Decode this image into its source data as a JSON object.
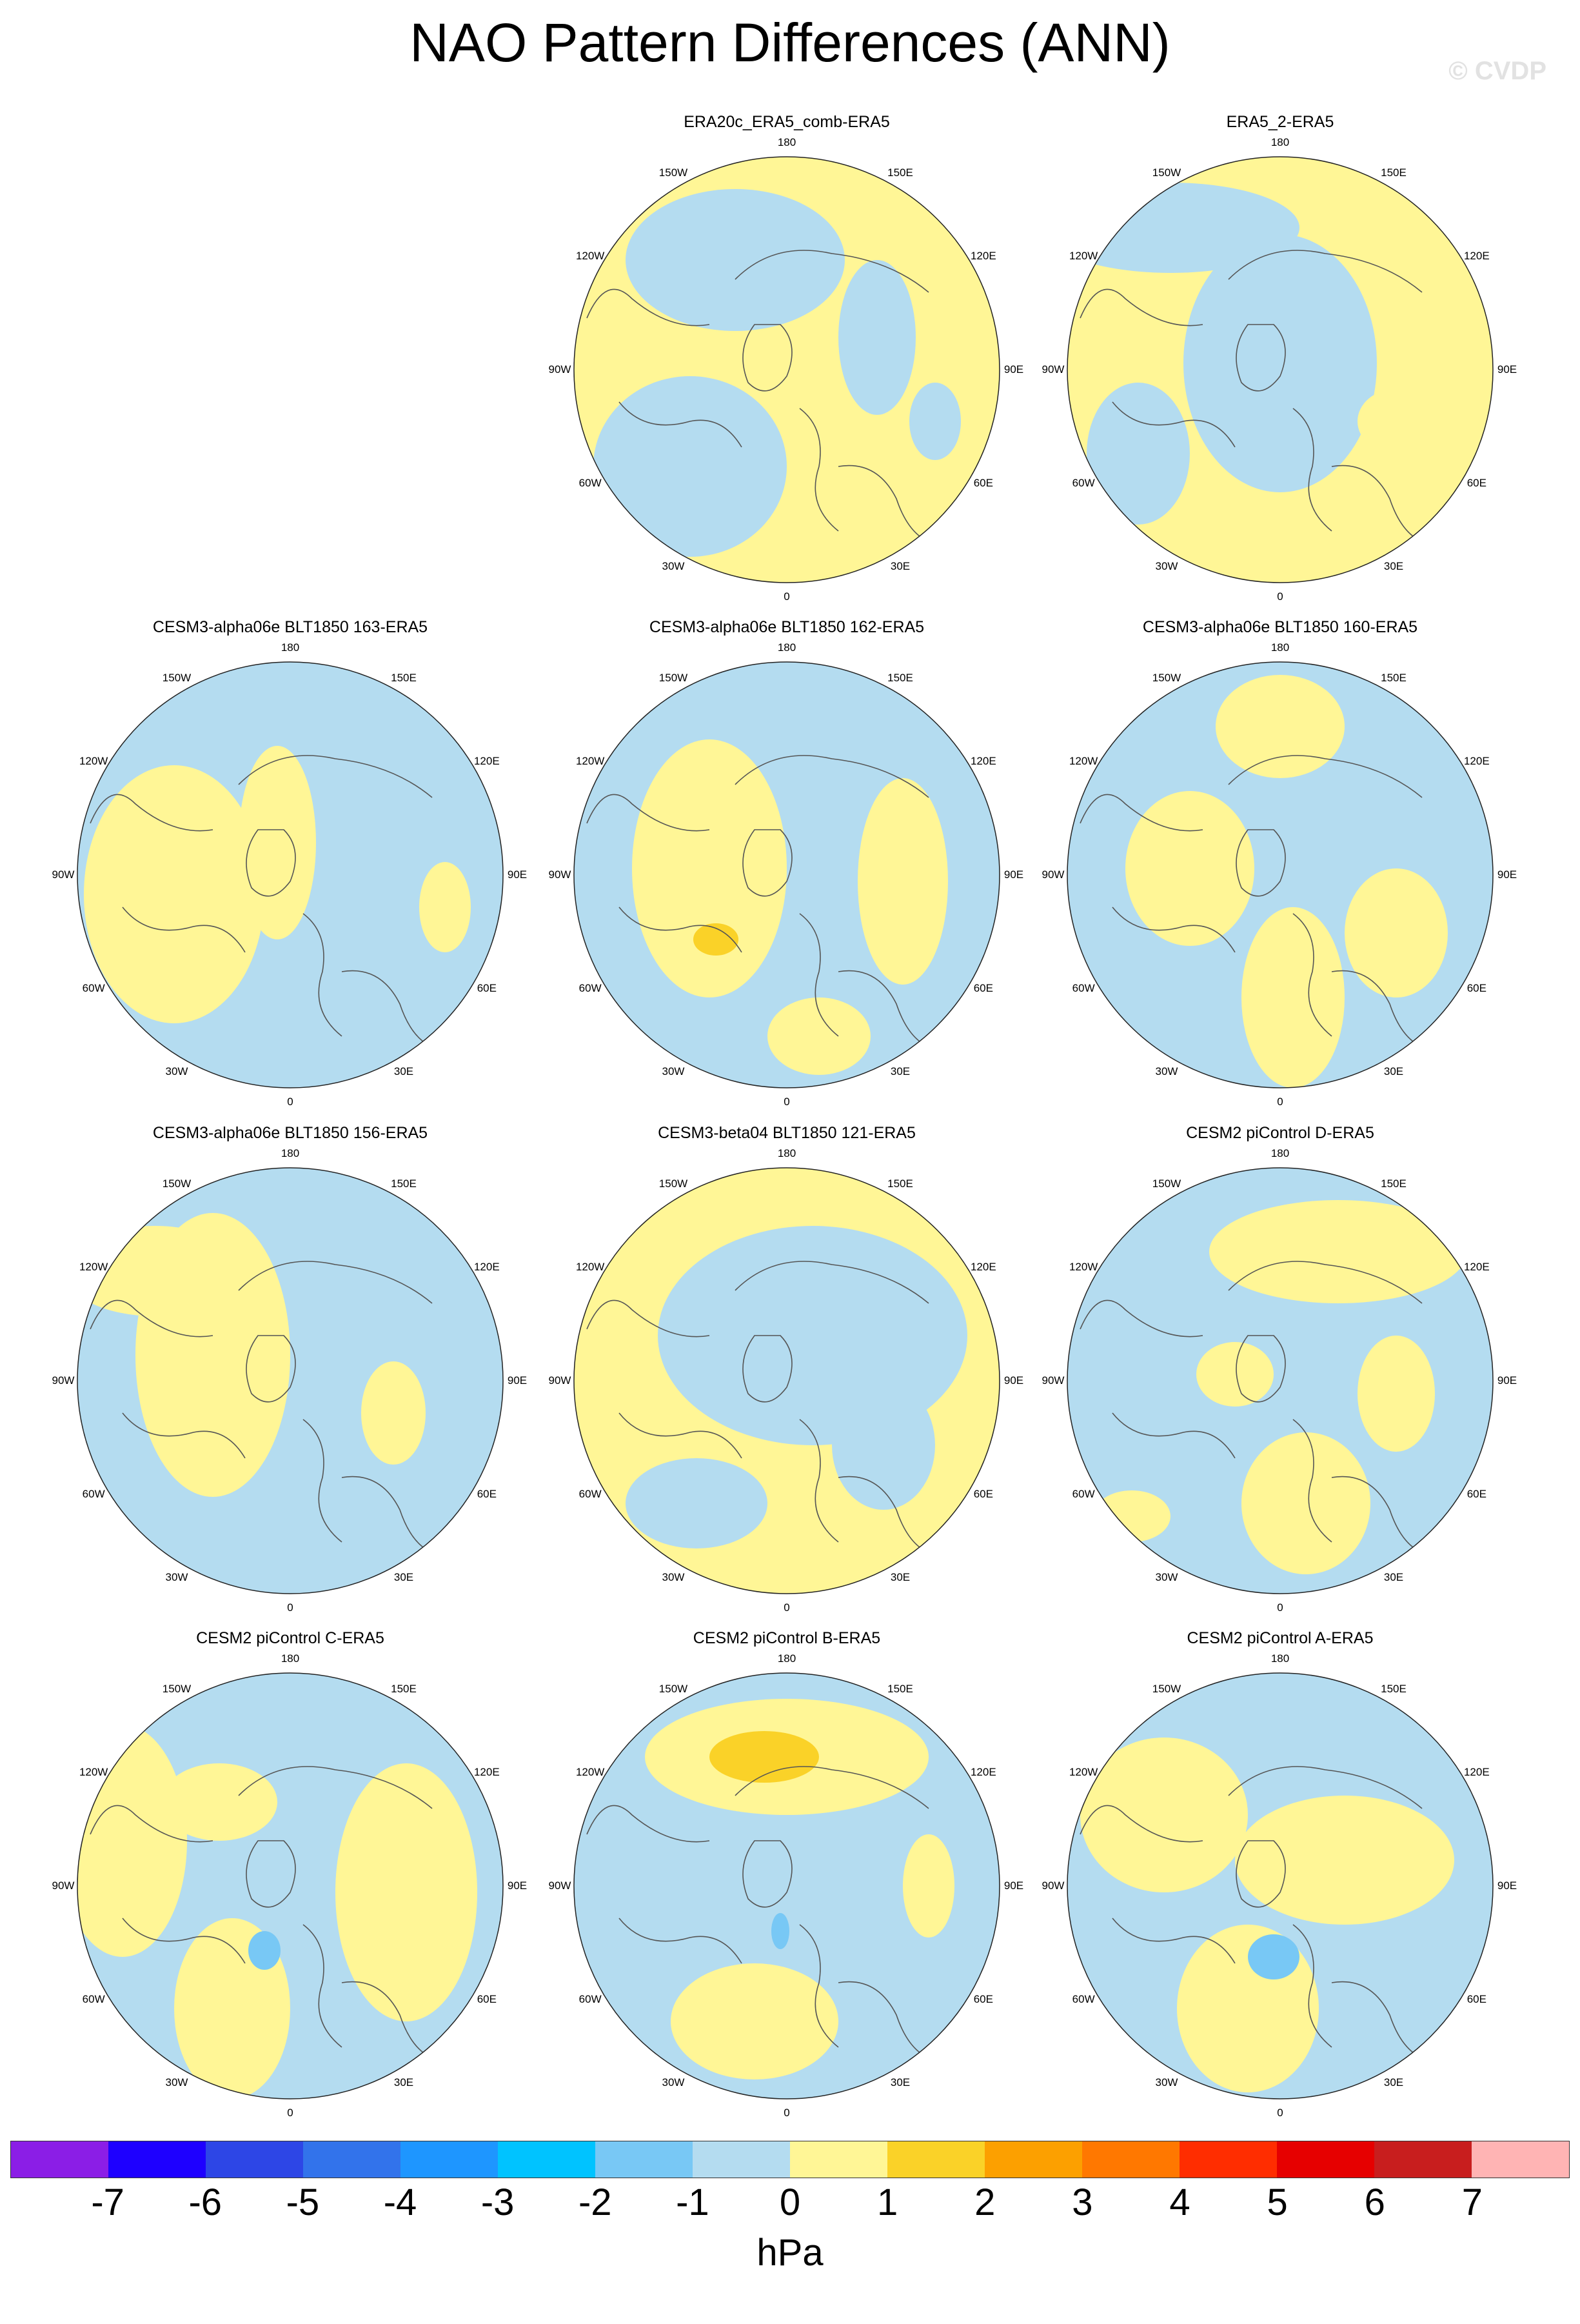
{
  "title": "NAO Pattern Differences (ANN)",
  "watermark": "© CVDP",
  "longitude_labels": [
    "180",
    "150E",
    "120E",
    "90E",
    "60E",
    "30E",
    "0",
    "30W",
    "60W",
    "90W",
    "120W",
    "150W"
  ],
  "panels": [
    {
      "title": "ERA20c_ERA5_comb-ERA5",
      "dominant": "positive",
      "extremes": []
    },
    {
      "title": "ERA5_2-ERA5",
      "dominant": "mixed",
      "extremes": []
    },
    {
      "title": "CESM3-alpha06e BLT1850 163-ERA5",
      "dominant": "negative",
      "extremes": []
    },
    {
      "title": "CESM3-alpha06e BLT1850 162-ERA5",
      "dominant": "mixed",
      "extremes": [
        "1 to 2 hPa over Labrador Sea"
      ]
    },
    {
      "title": "CESM3-alpha06e BLT1850 160-ERA5",
      "dominant": "negative",
      "extremes": []
    },
    {
      "title": "CESM3-alpha06e BLT1850 156-ERA5",
      "dominant": "negative",
      "extremes": []
    },
    {
      "title": "CESM3-beta04 BLT1850 121-ERA5",
      "dominant": "positive",
      "extremes": []
    },
    {
      "title": "CESM2 piControl D-ERA5",
      "dominant": "negative",
      "extremes": []
    },
    {
      "title": "CESM2 piControl C-ERA5",
      "dominant": "negative",
      "extremes": [
        "-2 to -1 hPa over Scandinavia"
      ]
    },
    {
      "title": "CESM2 piControl B-ERA5",
      "dominant": "negative",
      "extremes": [
        "1 to 2 hPa over North Pacific",
        "-2 to -1 hPa over Scandinavia"
      ]
    },
    {
      "title": "CESM2 piControl A-ERA5",
      "dominant": "negative",
      "extremes": [
        "-2 to -1 hPa over Eastern Europe"
      ]
    }
  ],
  "colorbar": {
    "colors": [
      "#8b1ee6",
      "#1e00ff",
      "#2d46e6",
      "#3273eb",
      "#1e96ff",
      "#00c3ff",
      "#78c8f5",
      "#b4dcf0",
      "#fff696",
      "#fad228",
      "#fca000",
      "#ff7800",
      "#ff2d00",
      "#e60000",
      "#c81e1e",
      "#ffb4b4"
    ],
    "ticks": [
      "-7",
      "-6",
      "-5",
      "-4",
      "-3",
      "-2",
      "-1",
      "0",
      "1",
      "2",
      "3",
      "4",
      "5",
      "6",
      "7"
    ],
    "unit": "hPa"
  }
}
